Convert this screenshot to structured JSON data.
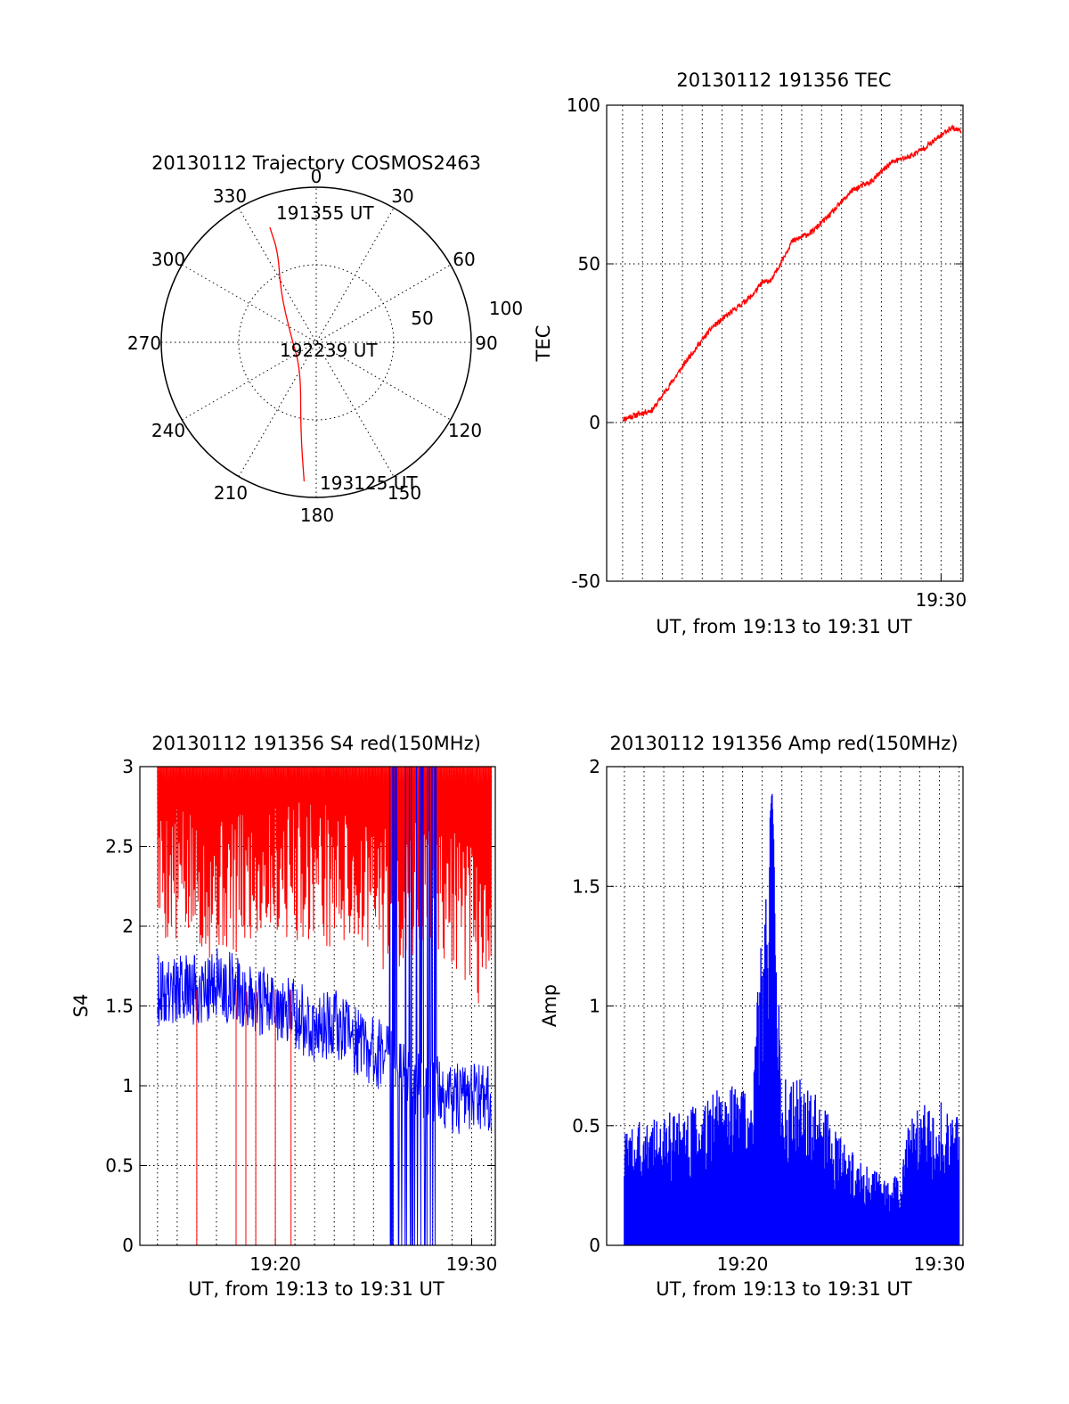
{
  "chart_data": [
    {
      "type": "polar",
      "title": "20130112 Trajectory COSMOS2463",
      "azimuth_labels": [
        "0",
        "30",
        "60",
        "90",
        "120",
        "150",
        "180",
        "210",
        "240",
        "270",
        "300",
        "330"
      ],
      "radial_labels": [
        "50",
        "100"
      ],
      "trajectory": [
        {
          "az": 338,
          "r": 80
        },
        {
          "az": 337,
          "r": 63
        },
        {
          "az": 325,
          "r": 40
        },
        {
          "az": 290,
          "r": 18
        },
        {
          "az": 210,
          "r": 20
        },
        {
          "az": 190,
          "r": 58
        },
        {
          "az": 185,
          "r": 90
        }
      ],
      "annotations": [
        "191355 UT",
        "192239 UT",
        "193125 UT"
      ],
      "color": "#ff0000"
    },
    {
      "type": "line",
      "title": "20130112 191356 TEC",
      "xlabel": "UT, from 19:13 to 19:31 UT",
      "ylabel": "TEC",
      "xlim": [
        13.2,
        31.1
      ],
      "ylim": [
        -50,
        100
      ],
      "x_ticks": [
        {
          "value": 30,
          "label": "19:30"
        }
      ],
      "y_ticks": [
        "-50",
        "0",
        "50",
        "100"
      ],
      "series": [
        {
          "color": "#ff0000",
          "x": [
            14.0,
            15.0,
            15.5,
            16.5,
            17.5,
            18.5,
            19.5,
            20.5,
            21.0,
            21.5,
            22.5,
            23.5,
            24.5,
            25.5,
            26.5,
            27.5,
            28.5,
            29.5,
            30.5,
            31.0
          ],
          "y": [
            1,
            3,
            4,
            13,
            22,
            30,
            35,
            40,
            44,
            45,
            57,
            60,
            66,
            73,
            76,
            82,
            84,
            88,
            93,
            92
          ]
        }
      ]
    },
    {
      "type": "line",
      "title": "20130112 191356 S4 red(150MHz)",
      "xlabel": "UT, from 19:13 to 19:31 UT",
      "ylabel": "S4",
      "xlim": [
        13.1,
        31.2
      ],
      "ylim": [
        0,
        3
      ],
      "x_ticks": [
        {
          "value": 20,
          "label": "19:20"
        },
        {
          "value": 30,
          "label": "19:30"
        }
      ],
      "y_ticks": [
        "0",
        "0.5",
        "1",
        "1.5",
        "2",
        "2.5",
        "3"
      ],
      "series": [
        {
          "color": "#ff0000",
          "x": [
            14.0,
            16.0,
            18.0,
            20.0,
            22.0,
            24.0,
            26.0,
            28.0,
            30.0,
            31.0
          ],
          "y": [
            2.6,
            2.5,
            2.5,
            2.6,
            2.6,
            2.5,
            2.4,
            2.5,
            2.3,
            2.0
          ]
        },
        {
          "color": "#0000ff",
          "x": [
            14.0,
            15.0,
            16.0,
            17.0,
            18.0,
            19.0,
            20.0,
            21.0,
            22.0,
            23.0,
            24.0,
            25.0,
            26.0,
            27.0,
            28.0,
            29.0,
            30.0,
            31.0
          ],
          "y": [
            1.6,
            1.6,
            1.6,
            1.65,
            1.6,
            1.55,
            1.5,
            1.45,
            1.35,
            1.4,
            1.3,
            1.2,
            1.2,
            1.0,
            1.0,
            0.9,
            0.95,
            0.9
          ]
        }
      ]
    },
    {
      "type": "line",
      "title": "20130112 191356 Amp red(150MHz)",
      "xlabel": "UT, from 19:13 to 19:31 UT",
      "ylabel": "Amp",
      "xlim": [
        13.1,
        31.2
      ],
      "ylim": [
        0,
        2
      ],
      "x_ticks": [
        {
          "value": 20,
          "label": "19:20"
        },
        {
          "value": 30,
          "label": "19:30"
        }
      ],
      "y_ticks": [
        "0",
        "0.5",
        "1",
        "1.5",
        "2"
      ],
      "series": [
        {
          "color": "#0000ff",
          "x": [
            14.0,
            16.0,
            18.0,
            19.5,
            20.5,
            21.5,
            22.0,
            23.0,
            24.0,
            25.0,
            26.0,
            27.0,
            28.0,
            28.5,
            29.5,
            30.5,
            31.0
          ],
          "y": [
            0.5,
            0.55,
            0.6,
            0.7,
            0.75,
            1.9,
            0.7,
            0.7,
            0.6,
            0.45,
            0.35,
            0.3,
            0.3,
            0.55,
            0.6,
            0.6,
            0.55
          ]
        }
      ]
    }
  ]
}
